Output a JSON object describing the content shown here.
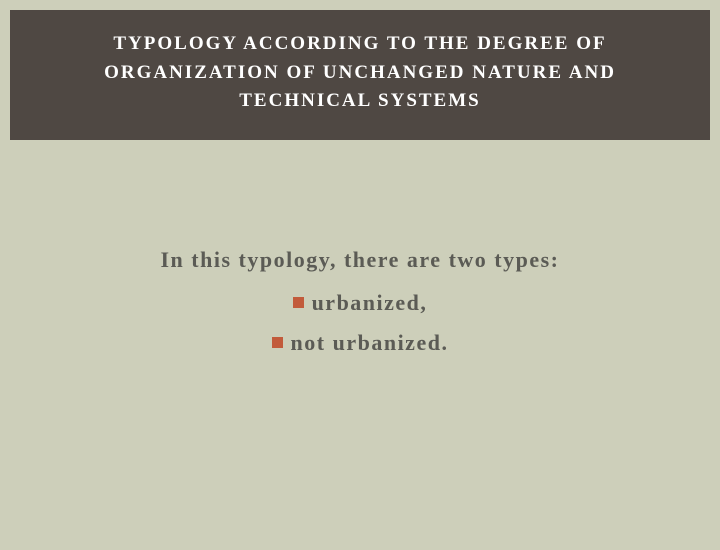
{
  "header": {
    "title": "TYPOLOGY ACCORDING TO THE DEGREE OF ORGANIZATION OF UNCHANGED NATURE AND TECHNICAL SYSTEMS",
    "background_color": "#4f4843",
    "text_color": "#ffffff",
    "font_size": 19,
    "letter_spacing": 2
  },
  "body": {
    "background_color": "#cdcfba",
    "text_color": "#5b5b55",
    "font_size": 22,
    "letter_spacing": 1.5,
    "intro": "In this typology, there are two types:",
    "bullets": [
      {
        "label": "urbanized,"
      },
      {
        "label": "not urbanized."
      }
    ],
    "bullet_color": "#c25b3b",
    "bullet_size": 11
  }
}
